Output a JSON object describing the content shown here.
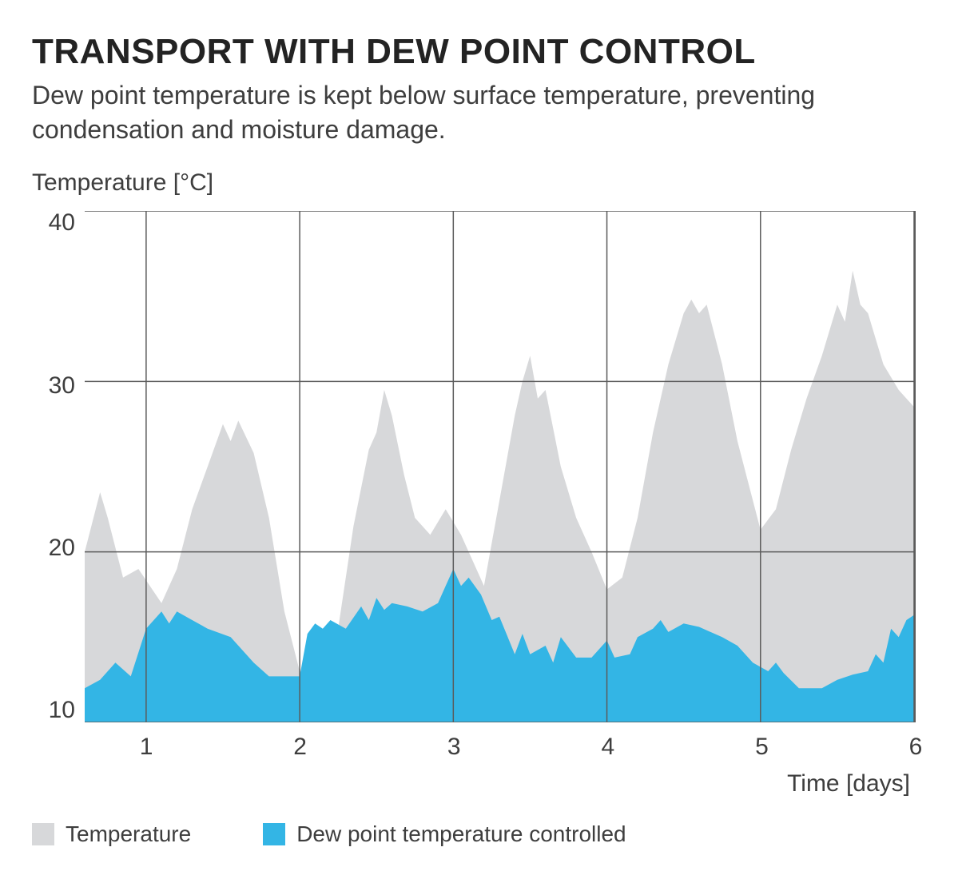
{
  "title": "TRANSPORT WITH DEW POINT CONTROL",
  "subtitle": "Dew point temperature is kept below surface temperature, preventing condensation and moisture damage.",
  "chart": {
    "type": "area",
    "ylabel": "Temperature [°C]",
    "xlabel": "Time [days]",
    "ylim": [
      10,
      40
    ],
    "ytick_step": 10,
    "yticks": [
      "40",
      "30",
      "20",
      "10"
    ],
    "xlim": [
      0.6,
      6.0
    ],
    "xticks": [
      "1",
      "2",
      "3",
      "4",
      "5",
      "6"
    ],
    "background_color": "#ffffff",
    "grid_color": "#5b5b5b",
    "grid_width": 1.5,
    "border_color": "#5b5b5b",
    "colors": {
      "temperature": "#d7d8da",
      "dewpoint": "#33b5e5"
    },
    "fontsize": {
      "title": 44,
      "subtitle": 32,
      "axis_label": 30,
      "tick": 30,
      "legend": 28
    },
    "series": [
      {
        "name": "Temperature",
        "color": "#d7d8da",
        "points": [
          [
            0.6,
            20.0
          ],
          [
            0.7,
            23.5
          ],
          [
            0.75,
            22.0
          ],
          [
            0.85,
            18.5
          ],
          [
            0.95,
            19.0
          ],
          [
            1.1,
            17.0
          ],
          [
            1.2,
            19.0
          ],
          [
            1.3,
            22.5
          ],
          [
            1.4,
            25.0
          ],
          [
            1.5,
            27.5
          ],
          [
            1.55,
            26.5
          ],
          [
            1.6,
            27.7
          ],
          [
            1.7,
            25.8
          ],
          [
            1.8,
            22.0
          ],
          [
            1.9,
            16.5
          ],
          [
            2.0,
            13.0
          ],
          [
            2.15,
            12.8
          ],
          [
            2.25,
            15.5
          ],
          [
            2.35,
            21.5
          ],
          [
            2.45,
            26.0
          ],
          [
            2.5,
            27.0
          ],
          [
            2.55,
            29.5
          ],
          [
            2.6,
            28.0
          ],
          [
            2.68,
            24.5
          ],
          [
            2.75,
            22.0
          ],
          [
            2.85,
            21.0
          ],
          [
            2.95,
            22.5
          ],
          [
            3.05,
            21.0
          ],
          [
            3.2,
            18.0
          ],
          [
            3.3,
            23.0
          ],
          [
            3.4,
            28.0
          ],
          [
            3.45,
            30.0
          ],
          [
            3.5,
            31.5
          ],
          [
            3.55,
            29.0
          ],
          [
            3.6,
            29.5
          ],
          [
            3.7,
            25.0
          ],
          [
            3.8,
            22.0
          ],
          [
            3.9,
            20.0
          ],
          [
            4.0,
            17.8
          ],
          [
            4.1,
            18.5
          ],
          [
            4.2,
            22.0
          ],
          [
            4.3,
            27.0
          ],
          [
            4.4,
            31.0
          ],
          [
            4.5,
            34.0
          ],
          [
            4.55,
            34.8
          ],
          [
            4.6,
            34.0
          ],
          [
            4.65,
            34.5
          ],
          [
            4.75,
            31.0
          ],
          [
            4.85,
            26.5
          ],
          [
            5.0,
            21.3
          ],
          [
            5.1,
            22.5
          ],
          [
            5.2,
            26.0
          ],
          [
            5.3,
            29.0
          ],
          [
            5.4,
            31.5
          ],
          [
            5.5,
            34.5
          ],
          [
            5.55,
            33.5
          ],
          [
            5.6,
            36.5
          ],
          [
            5.65,
            34.5
          ],
          [
            5.7,
            34.0
          ],
          [
            5.8,
            31.0
          ],
          [
            5.9,
            29.5
          ],
          [
            6.0,
            28.5
          ]
        ]
      },
      {
        "name": "Dew point temperature controlled",
        "color": "#33b5e5",
        "points": [
          [
            0.6,
            12.0
          ],
          [
            0.7,
            12.5
          ],
          [
            0.8,
            13.5
          ],
          [
            0.9,
            12.7
          ],
          [
            1.0,
            15.5
          ],
          [
            1.1,
            16.5
          ],
          [
            1.15,
            15.8
          ],
          [
            1.2,
            16.5
          ],
          [
            1.3,
            16.0
          ],
          [
            1.4,
            15.5
          ],
          [
            1.55,
            15.0
          ],
          [
            1.7,
            13.5
          ],
          [
            1.8,
            12.7
          ],
          [
            1.9,
            12.7
          ],
          [
            2.0,
            12.7
          ],
          [
            2.05,
            15.2
          ],
          [
            2.1,
            15.8
          ],
          [
            2.15,
            15.5
          ],
          [
            2.2,
            16.0
          ],
          [
            2.3,
            15.5
          ],
          [
            2.4,
            16.8
          ],
          [
            2.45,
            16.0
          ],
          [
            2.5,
            17.3
          ],
          [
            2.55,
            16.6
          ],
          [
            2.6,
            17.0
          ],
          [
            2.7,
            16.8
          ],
          [
            2.8,
            16.5
          ],
          [
            2.9,
            17.0
          ],
          [
            2.95,
            18.0
          ],
          [
            3.0,
            19.0
          ],
          [
            3.05,
            18.0
          ],
          [
            3.1,
            18.5
          ],
          [
            3.18,
            17.5
          ],
          [
            3.25,
            16.0
          ],
          [
            3.3,
            16.2
          ],
          [
            3.4,
            14.0
          ],
          [
            3.45,
            15.2
          ],
          [
            3.5,
            14.0
          ],
          [
            3.6,
            14.5
          ],
          [
            3.65,
            13.5
          ],
          [
            3.7,
            15.0
          ],
          [
            3.8,
            13.8
          ],
          [
            3.9,
            13.8
          ],
          [
            4.0,
            14.8
          ],
          [
            4.05,
            13.8
          ],
          [
            4.15,
            14.0
          ],
          [
            4.2,
            15.0
          ],
          [
            4.3,
            15.5
          ],
          [
            4.35,
            16.0
          ],
          [
            4.4,
            15.3
          ],
          [
            4.5,
            15.8
          ],
          [
            4.6,
            15.6
          ],
          [
            4.75,
            15.0
          ],
          [
            4.85,
            14.5
          ],
          [
            4.95,
            13.5
          ],
          [
            5.05,
            13.0
          ],
          [
            5.1,
            13.5
          ],
          [
            5.15,
            12.9
          ],
          [
            5.25,
            12.0
          ],
          [
            5.4,
            12.0
          ],
          [
            5.5,
            12.5
          ],
          [
            5.6,
            12.8
          ],
          [
            5.7,
            13.0
          ],
          [
            5.75,
            14.0
          ],
          [
            5.8,
            13.5
          ],
          [
            5.85,
            15.5
          ],
          [
            5.9,
            15.0
          ],
          [
            5.95,
            16.0
          ],
          [
            6.0,
            16.3
          ]
        ]
      }
    ],
    "legend": [
      {
        "label": "Temperature",
        "color": "#d7d8da"
      },
      {
        "label": "Dew point temperature controlled",
        "color": "#33b5e5"
      }
    ]
  }
}
